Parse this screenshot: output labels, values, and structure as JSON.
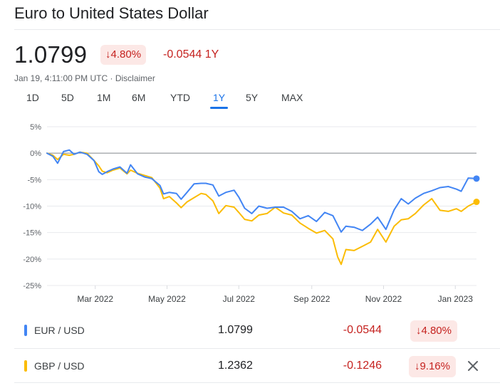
{
  "header": {
    "title": "Euro to United States Dollar",
    "price": "1.0799",
    "change_pct": "4.80%",
    "change_abs": "-0.0544",
    "change_period": "1Y",
    "timestamp": "Jan 19, 4:11:00 PM UTC · Disclaimer"
  },
  "tabs": [
    {
      "label": "1D",
      "active": false
    },
    {
      "label": "5D",
      "active": false
    },
    {
      "label": "1M",
      "active": false
    },
    {
      "label": "6M",
      "active": false
    },
    {
      "label": "YTD",
      "active": false
    },
    {
      "label": "1Y",
      "active": true
    },
    {
      "label": "5Y",
      "active": false
    },
    {
      "label": "MAX",
      "active": false
    }
  ],
  "colors": {
    "eur": "#4285f4",
    "gbp": "#fbbc04",
    "negative": "#c5221f",
    "accent": "#1a73e8"
  },
  "chart_data": {
    "type": "line",
    "ylim": [
      -25,
      5
    ],
    "yticks": [
      5,
      0,
      -5,
      -10,
      -15,
      -20,
      -25
    ],
    "ytick_labels": [
      "5%",
      "0%",
      "-5%",
      "-10%",
      "-15%",
      "-20%",
      "-25%"
    ],
    "xlim": [
      "2022-01-19",
      "2023-01-19"
    ],
    "xticks": [
      {
        "date": "2022-03-01",
        "label": "Mar 2022"
      },
      {
        "date": "2022-05-01",
        "label": "May 2022"
      },
      {
        "date": "2022-07-01",
        "label": "Jul 2022"
      },
      {
        "date": "2022-09-01",
        "label": "Sep 2022"
      },
      {
        "date": "2022-11-01",
        "label": "Nov 2022"
      },
      {
        "date": "2023-01-01",
        "label": "Jan 2023"
      }
    ],
    "baseline": 0,
    "grid": true,
    "series": [
      {
        "name": "EUR / USD",
        "x": [
          "2022-01-19",
          "2022-01-24",
          "2022-01-28",
          "2022-02-02",
          "2022-02-07",
          "2022-02-11",
          "2022-02-16",
          "2022-02-22",
          "2022-02-28",
          "2022-03-04",
          "2022-03-07",
          "2022-03-11",
          "2022-03-16",
          "2022-03-22",
          "2022-03-28",
          "2022-03-31",
          "2022-04-06",
          "2022-04-12",
          "2022-04-18",
          "2022-04-25",
          "2022-04-28",
          "2022-05-03",
          "2022-05-09",
          "2022-05-13",
          "2022-05-18",
          "2022-05-24",
          "2022-05-30",
          "2022-06-03",
          "2022-06-09",
          "2022-06-14",
          "2022-06-20",
          "2022-06-27",
          "2022-07-01",
          "2022-07-06",
          "2022-07-12",
          "2022-07-18",
          "2022-07-25",
          "2022-08-01",
          "2022-08-08",
          "2022-08-15",
          "2022-08-22",
          "2022-08-29",
          "2022-09-05",
          "2022-09-12",
          "2022-09-19",
          "2022-09-26",
          "2022-09-30",
          "2022-10-07",
          "2022-10-14",
          "2022-10-21",
          "2022-10-27",
          "2022-11-03",
          "2022-11-10",
          "2022-11-16",
          "2022-11-22",
          "2022-11-28",
          "2022-12-05",
          "2022-12-12",
          "2022-12-19",
          "2022-12-26",
          "2023-01-02",
          "2023-01-06",
          "2023-01-12",
          "2023-01-19"
        ],
        "y": [
          0,
          -0.6,
          -1.9,
          0.3,
          0.6,
          -0.2,
          0.2,
          -0.2,
          -1.4,
          -3.5,
          -4.0,
          -3.5,
          -3.0,
          -2.6,
          -3.8,
          -2.2,
          -3.9,
          -4.5,
          -4.8,
          -6.1,
          -7.7,
          -7.4,
          -7.6,
          -8.7,
          -7.4,
          -5.8,
          -5.7,
          -5.7,
          -6.0,
          -8.1,
          -7.4,
          -7.0,
          -8.3,
          -10.4,
          -11.4,
          -10.0,
          -10.4,
          -10.2,
          -10.2,
          -11.0,
          -12.4,
          -11.8,
          -12.9,
          -11.2,
          -11.8,
          -14.9,
          -13.8,
          -14.0,
          -14.6,
          -13.4,
          -12.1,
          -14.4,
          -10.7,
          -8.6,
          -9.6,
          -8.5,
          -7.6,
          -7.1,
          -6.5,
          -6.3,
          -6.8,
          -7.2,
          -4.7,
          -4.8
        ]
      },
      {
        "name": "GBP / USD",
        "x": [
          "2022-01-19",
          "2022-01-24",
          "2022-01-28",
          "2022-02-02",
          "2022-02-07",
          "2022-02-11",
          "2022-02-16",
          "2022-02-22",
          "2022-02-28",
          "2022-03-04",
          "2022-03-07",
          "2022-03-11",
          "2022-03-16",
          "2022-03-22",
          "2022-03-28",
          "2022-03-31",
          "2022-04-06",
          "2022-04-12",
          "2022-04-18",
          "2022-04-25",
          "2022-04-28",
          "2022-05-03",
          "2022-05-09",
          "2022-05-13",
          "2022-05-18",
          "2022-05-24",
          "2022-05-30",
          "2022-06-03",
          "2022-06-09",
          "2022-06-14",
          "2022-06-20",
          "2022-06-27",
          "2022-07-01",
          "2022-07-06",
          "2022-07-12",
          "2022-07-18",
          "2022-07-25",
          "2022-08-01",
          "2022-08-08",
          "2022-08-15",
          "2022-08-22",
          "2022-08-29",
          "2022-09-05",
          "2022-09-12",
          "2022-09-19",
          "2022-09-23",
          "2022-09-26",
          "2022-09-30",
          "2022-10-07",
          "2022-10-14",
          "2022-10-21",
          "2022-10-27",
          "2022-11-03",
          "2022-11-10",
          "2022-11-16",
          "2022-11-22",
          "2022-11-28",
          "2022-12-05",
          "2022-12-12",
          "2022-12-19",
          "2022-12-26",
          "2023-01-02",
          "2023-01-06",
          "2023-01-12",
          "2023-01-19"
        ],
        "y": [
          0,
          -0.4,
          -1.2,
          -0.2,
          -0.4,
          -0.2,
          0.2,
          0,
          -1.4,
          -2.4,
          -3.4,
          -3.7,
          -3.2,
          -2.8,
          -3.9,
          -3.2,
          -3.8,
          -4.2,
          -4.6,
          -6.6,
          -8.6,
          -8.2,
          -9.4,
          -10.3,
          -9.2,
          -8.4,
          -7.6,
          -7.8,
          -9.0,
          -11.4,
          -9.9,
          -10.2,
          -11.2,
          -12.5,
          -12.8,
          -11.7,
          -11.4,
          -10.2,
          -11.3,
          -11.7,
          -13.2,
          -14.2,
          -15.1,
          -14.6,
          -16.2,
          -19.6,
          -21.0,
          -18.2,
          -18.4,
          -17.6,
          -16.8,
          -14.4,
          -16.8,
          -13.8,
          -12.6,
          -12.4,
          -11.4,
          -9.8,
          -8.6,
          -10.8,
          -11.0,
          -10.5,
          -11.0,
          -10.0,
          -9.2
        ]
      }
    ]
  },
  "rows": [
    {
      "pair": "EUR / USD",
      "price": "1.0799",
      "change": "-0.0544",
      "pct": "4.80%"
    },
    {
      "pair": "GBP / USD",
      "price": "1.2362",
      "change": "-0.1246",
      "pct": "9.16%"
    }
  ]
}
